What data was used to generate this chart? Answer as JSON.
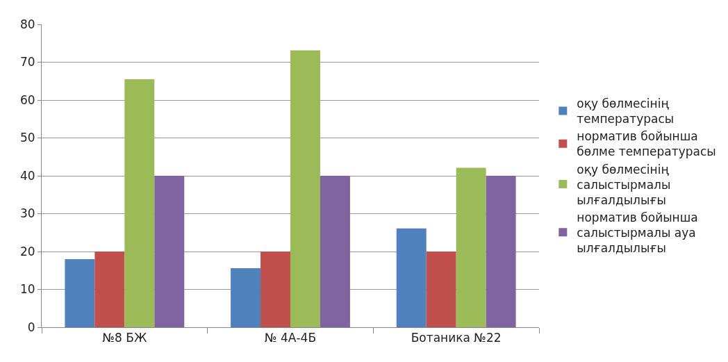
{
  "chart_data": {
    "type": "bar",
    "categories": [
      "№8 БЖ",
      "№ 4А-4Б",
      "Ботаника №22"
    ],
    "series": [
      {
        "name": "оқу бөлмесінің температурасы",
        "color": "#4f81bd",
        "values": [
          18,
          15.6,
          26.1
        ]
      },
      {
        "name": "норматив бойынша бөлме температурасы",
        "color": "#c0504d",
        "values": [
          20,
          20,
          20
        ]
      },
      {
        "name": "оқу бөлмесінің салыстырмалы ылғалдылығы",
        "color": "#9bbb59",
        "values": [
          65.5,
          73.1,
          42.1
        ]
      },
      {
        "name": "норматив бойынша салыстырмалы ауа ылғалдылығы",
        "color": "#8064a2",
        "values": [
          40,
          40,
          40
        ]
      }
    ],
    "ylim": [
      0,
      80
    ],
    "yticks": [
      0,
      10,
      20,
      30,
      40,
      50,
      60,
      70,
      80
    ],
    "grid": "y",
    "legend": "right"
  }
}
